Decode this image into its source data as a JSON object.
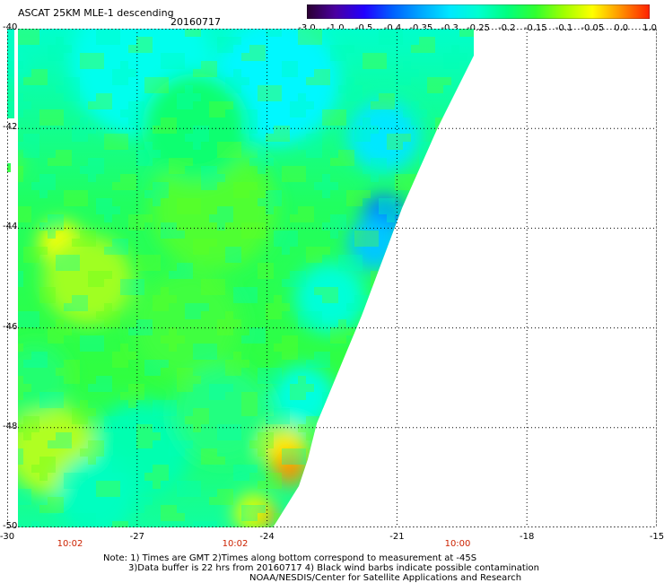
{
  "header": {
    "title": "ASCAT 25KM MLE-1 descending",
    "date": "20160717"
  },
  "colorbar": {
    "tick_labels": [
      "-3.0",
      "-1.0",
      "-0.5",
      "-0.4",
      "-0.35",
      "-0.3",
      "-0.25",
      "-0.2",
      "-0.15",
      "-0.1",
      "-0.05",
      "0.0",
      "1.0"
    ],
    "colors": [
      "#2a0030",
      "#4a00a0",
      "#2200ff",
      "#0060ff",
      "#00a8ff",
      "#00e8ff",
      "#00ffd0",
      "#00ff80",
      "#30ff30",
      "#a0ff00",
      "#ffff00",
      "#ff9000",
      "#ff2000"
    ]
  },
  "map": {
    "lat_labels": [
      "-40",
      "-42",
      "-44",
      "-46",
      "-48",
      "-50"
    ],
    "lon_labels": [
      "-30",
      "-27",
      "-24",
      "-21",
      "-18",
      "-15"
    ],
    "times": [
      "10:02",
      "10:02",
      "10:00"
    ],
    "grid": "dotted"
  },
  "notes": {
    "line1": "Note: 1) Times are GMT 2)Times along bottom correspond to measurement at -45S",
    "line2": "3)Data buffer is 22 hrs from 20160717 4) Black wind barbs indicate possible contamination",
    "line3": "NOAA/NESDIS/Center for Satellite Applications and Research"
  }
}
